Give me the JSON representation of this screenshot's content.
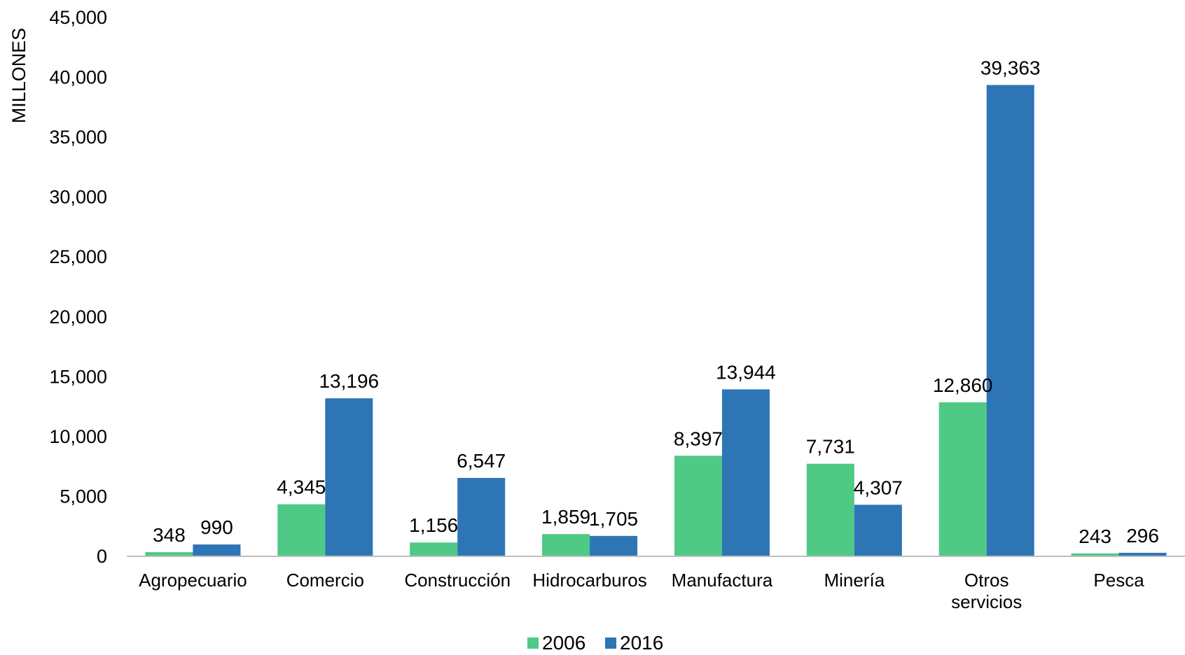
{
  "chart_data": {
    "type": "bar",
    "title": "",
    "xlabel": "",
    "ylabel": "MILLONES",
    "ylim": [
      0,
      45000
    ],
    "yticks": [
      0,
      5000,
      10000,
      15000,
      20000,
      25000,
      30000,
      35000,
      40000,
      45000
    ],
    "ytick_labels": [
      "0",
      "5,000",
      "10,000",
      "15,000",
      "20,000",
      "25,000",
      "30,000",
      "35,000",
      "40,000",
      "45,000"
    ],
    "grid": false,
    "legend_position": "bottom",
    "categories": [
      "Agropecuario",
      "Comercio",
      "Construcción",
      "Hidrocarburos",
      "Manufactura",
      "Minería",
      "Otros servicios",
      "Pesca"
    ],
    "category_lines": [
      [
        "Agropecuario"
      ],
      [
        "Comercio"
      ],
      [
        "Construcción"
      ],
      [
        "Hidrocarburos"
      ],
      [
        "Manufactura"
      ],
      [
        "Minería"
      ],
      [
        "Otros",
        "servicios"
      ],
      [
        "Pesca"
      ]
    ],
    "series": [
      {
        "name": "2006",
        "color": "#4EC986",
        "values": [
          348,
          4345,
          1156,
          1859,
          8397,
          7731,
          12860,
          243
        ],
        "labels": [
          "348",
          "4,345",
          "1,156",
          "1,859",
          "8,397",
          "7,731",
          "12,860",
          "243"
        ]
      },
      {
        "name": "2016",
        "color": "#2E75B6",
        "values": [
          990,
          13196,
          6547,
          1705,
          13944,
          4307,
          39363,
          296
        ],
        "labels": [
          "990",
          "13,196",
          "6,547",
          "1,705",
          "13,944",
          "4,307",
          "39,363",
          "296"
        ]
      }
    ]
  }
}
